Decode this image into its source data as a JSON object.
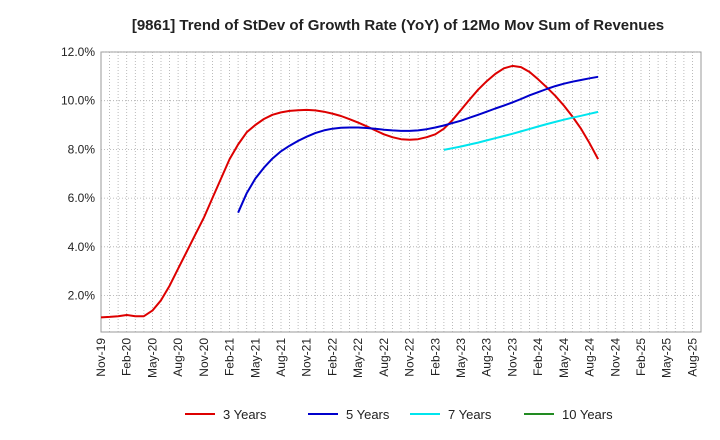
{
  "chart_data": {
    "type": "line",
    "title": "[9861]  Trend of StDev of Growth Rate (YoY) of 12Mo Mov Sum of Revenues",
    "xlabel": "",
    "ylabel": "",
    "x_ticks": [
      "Nov-19",
      "Feb-20",
      "May-20",
      "Aug-20",
      "Nov-20",
      "Feb-21",
      "May-21",
      "Aug-21",
      "Nov-21",
      "Feb-22",
      "May-22",
      "Aug-22",
      "Nov-22",
      "Feb-23",
      "May-23",
      "Aug-23",
      "Nov-23",
      "Feb-24",
      "May-24",
      "Aug-24",
      "Nov-24",
      "Feb-25",
      "May-25",
      "Aug-25"
    ],
    "y_ticks": [
      "2.0%",
      "4.0%",
      "6.0%",
      "8.0%",
      "10.0%",
      "12.0%"
    ],
    "y_tick_values": [
      2,
      4,
      6,
      8,
      10,
      12
    ],
    "ylim": [
      0.5,
      12
    ],
    "x_range_months": [
      0,
      70
    ],
    "grid": true,
    "legend_position": "bottom",
    "series": [
      {
        "name": "3 Years",
        "color": "#dd0000",
        "points": [
          [
            0,
            1.1
          ],
          [
            1,
            1.12
          ],
          [
            2,
            1.15
          ],
          [
            3,
            1.2
          ],
          [
            4,
            1.15
          ],
          [
            5,
            1.15
          ],
          [
            6,
            1.38
          ],
          [
            7,
            1.8
          ],
          [
            8,
            2.4
          ],
          [
            9,
            3.1
          ],
          [
            10,
            3.8
          ],
          [
            11,
            4.5
          ],
          [
            12,
            5.2
          ],
          [
            13,
            6.0
          ],
          [
            14,
            6.8
          ],
          [
            15,
            7.6
          ],
          [
            16,
            8.2
          ],
          [
            17,
            8.7
          ],
          [
            18,
            9.0
          ],
          [
            19,
            9.25
          ],
          [
            20,
            9.42
          ],
          [
            21,
            9.52
          ],
          [
            22,
            9.58
          ],
          [
            23,
            9.61
          ],
          [
            24,
            9.62
          ],
          [
            25,
            9.6
          ],
          [
            26,
            9.55
          ],
          [
            27,
            9.47
          ],
          [
            28,
            9.37
          ],
          [
            29,
            9.24
          ],
          [
            30,
            9.1
          ],
          [
            31,
            8.95
          ],
          [
            32,
            8.78
          ],
          [
            33,
            8.62
          ],
          [
            34,
            8.5
          ],
          [
            35,
            8.42
          ],
          [
            36,
            8.4
          ],
          [
            37,
            8.42
          ],
          [
            38,
            8.5
          ],
          [
            39,
            8.62
          ],
          [
            40,
            8.85
          ],
          [
            41,
            9.2
          ],
          [
            42,
            9.62
          ],
          [
            43,
            10.05
          ],
          [
            44,
            10.45
          ],
          [
            45,
            10.8
          ],
          [
            46,
            11.1
          ],
          [
            47,
            11.33
          ],
          [
            48,
            11.43
          ],
          [
            49,
            11.38
          ],
          [
            50,
            11.18
          ],
          [
            51,
            10.88
          ],
          [
            52,
            10.55
          ],
          [
            53,
            10.2
          ],
          [
            54,
            9.8
          ],
          [
            55,
            9.35
          ],
          [
            56,
            8.85
          ],
          [
            57,
            8.25
          ],
          [
            58,
            7.6
          ]
        ]
      },
      {
        "name": "5 Years",
        "color": "#0000cc",
        "points": [
          [
            16,
            5.4
          ],
          [
            17,
            6.2
          ],
          [
            18,
            6.8
          ],
          [
            19,
            7.25
          ],
          [
            20,
            7.62
          ],
          [
            21,
            7.92
          ],
          [
            22,
            8.15
          ],
          [
            23,
            8.35
          ],
          [
            24,
            8.52
          ],
          [
            25,
            8.67
          ],
          [
            26,
            8.78
          ],
          [
            27,
            8.85
          ],
          [
            28,
            8.89
          ],
          [
            29,
            8.9
          ],
          [
            30,
            8.9
          ],
          [
            31,
            8.88
          ],
          [
            32,
            8.85
          ],
          [
            33,
            8.81
          ],
          [
            34,
            8.78
          ],
          [
            35,
            8.76
          ],
          [
            36,
            8.76
          ],
          [
            37,
            8.78
          ],
          [
            38,
            8.83
          ],
          [
            39,
            8.9
          ],
          [
            40,
            8.98
          ],
          [
            41,
            9.08
          ],
          [
            42,
            9.18
          ],
          [
            43,
            9.3
          ],
          [
            44,
            9.42
          ],
          [
            45,
            9.55
          ],
          [
            46,
            9.68
          ],
          [
            47,
            9.8
          ],
          [
            48,
            9.93
          ],
          [
            49,
            10.07
          ],
          [
            50,
            10.22
          ],
          [
            51,
            10.35
          ],
          [
            52,
            10.48
          ],
          [
            53,
            10.6
          ],
          [
            54,
            10.7
          ],
          [
            55,
            10.78
          ],
          [
            56,
            10.85
          ],
          [
            57,
            10.92
          ],
          [
            58,
            10.98
          ]
        ]
      },
      {
        "name": "7 Years",
        "color": "#00e5ee",
        "points": [
          [
            40,
            7.98
          ],
          [
            41,
            8.05
          ],
          [
            42,
            8.12
          ],
          [
            43,
            8.2
          ],
          [
            44,
            8.28
          ],
          [
            45,
            8.37
          ],
          [
            46,
            8.46
          ],
          [
            47,
            8.55
          ],
          [
            48,
            8.64
          ],
          [
            49,
            8.74
          ],
          [
            50,
            8.84
          ],
          [
            51,
            8.94
          ],
          [
            52,
            9.04
          ],
          [
            53,
            9.13
          ],
          [
            54,
            9.22
          ],
          [
            55,
            9.3
          ],
          [
            56,
            9.38
          ],
          [
            57,
            9.46
          ],
          [
            58,
            9.54
          ]
        ]
      },
      {
        "name": "10 Years",
        "color": "#228b22",
        "points": []
      }
    ]
  }
}
